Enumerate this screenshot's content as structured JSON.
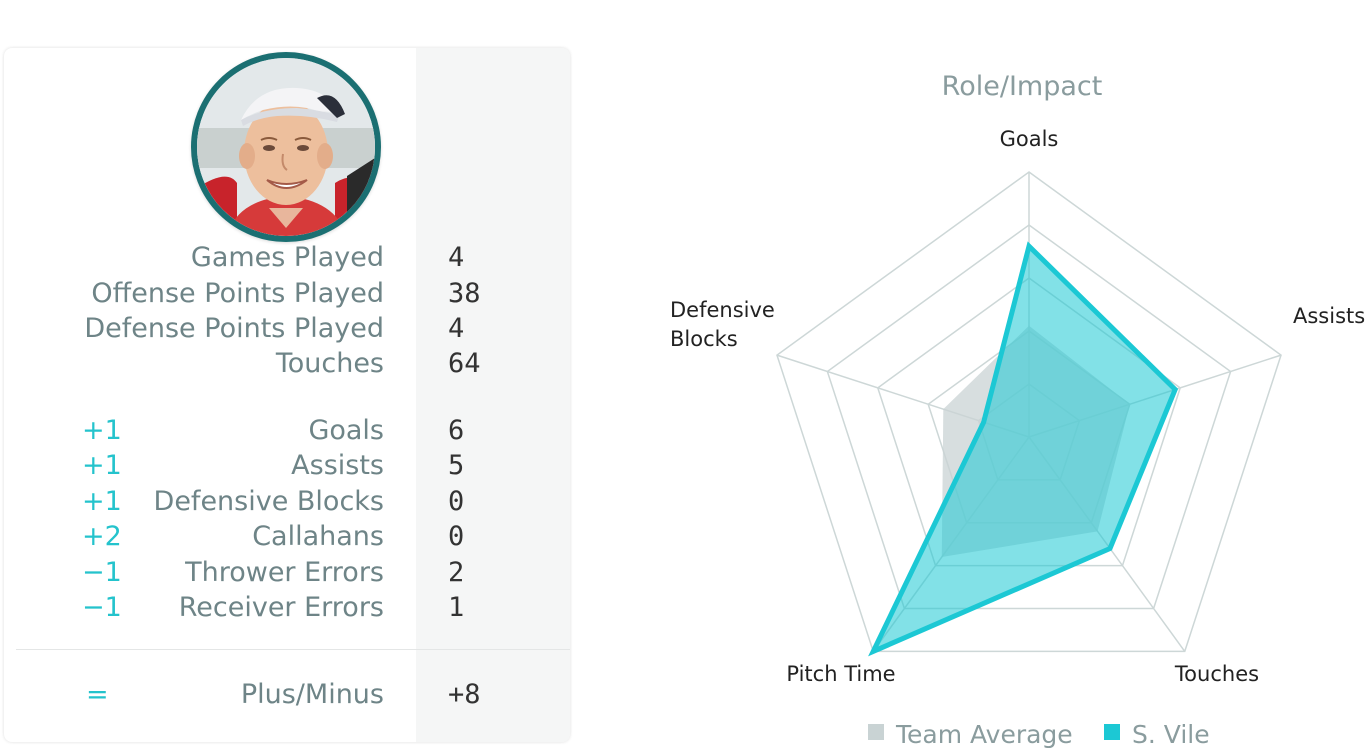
{
  "player": {
    "summary": [
      {
        "label": "Games Played",
        "value": "4"
      },
      {
        "label": "Offense Points Played",
        "value": "38"
      },
      {
        "label": "Defense Points Played",
        "value": "4"
      },
      {
        "label": "Touches",
        "value": "64"
      }
    ],
    "scoring": [
      {
        "weight": "+1",
        "label": "Goals",
        "value": "6"
      },
      {
        "weight": "+1",
        "label": "Assists",
        "value": "5"
      },
      {
        "weight": "+1",
        "label": "Defensive Blocks",
        "value": "0"
      },
      {
        "weight": "+2",
        "label": "Callahans",
        "value": "0"
      },
      {
        "weight": "−1",
        "label": "Thrower Errors",
        "value": "2"
      },
      {
        "weight": "−1",
        "label": "Receiver Errors",
        "value": "1"
      }
    ],
    "total": {
      "weight": "=",
      "label": "Plus/Minus",
      "value": "+8"
    }
  },
  "chart_data": {
    "type": "radar",
    "title": "Role/Impact",
    "axes": [
      "Goals",
      "Assists",
      "Touches",
      "Pitch Time",
      "Defensive Blocks"
    ],
    "range": [
      0,
      5
    ],
    "grid": true,
    "legend_position": "bottom",
    "series": [
      {
        "name": "Team Average",
        "color": "#c9d3d4",
        "values": [
          2.1,
          2.0,
          2.2,
          2.8,
          1.7
        ]
      },
      {
        "name": "S. Vile",
        "color": "#1cc8d4",
        "values": [
          3.6,
          2.9,
          2.6,
          5.0,
          0.9
        ]
      }
    ]
  },
  "colors": {
    "accent": "#1cc8d4",
    "label_text": "#6e8487",
    "value_text": "#333333",
    "avatar_ring": "#1b6f72"
  }
}
